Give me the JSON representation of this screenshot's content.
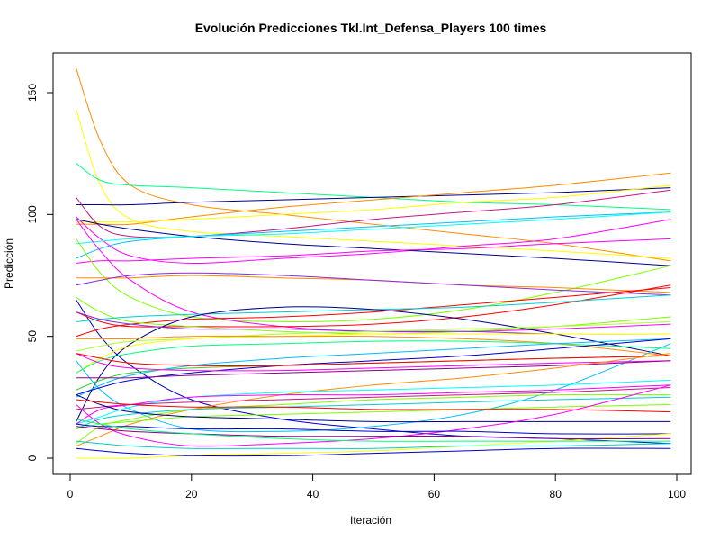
{
  "chart_data": {
    "type": "line",
    "title": "Evolución Predicciones Tkl.Int_Defensa_Players 100 times",
    "xlabel": "Iteración",
    "ylabel": "Predicción",
    "xlim": [
      1,
      99
    ],
    "ylim": [
      0,
      160
    ],
    "x_ticks": [
      0,
      20,
      40,
      60,
      80,
      100
    ],
    "y_ticks": [
      0,
      50,
      100,
      150
    ],
    "grid": false,
    "legend": "none",
    "x_sample": [
      1,
      5,
      10,
      20,
      35,
      50,
      65,
      80,
      99
    ],
    "series": [
      {
        "color": "#FF8C00",
        "values": [
          160,
          130,
          112,
          104,
          100,
          96,
          92,
          88,
          81
        ]
      },
      {
        "color": "#FFFF00",
        "values": [
          143,
          112,
          98,
          93,
          91,
          89,
          87,
          85,
          82
        ]
      },
      {
        "color": "#00FF7F",
        "values": [
          121,
          114,
          112,
          111,
          109,
          107,
          105,
          104,
          102
        ]
      },
      {
        "color": "#00008B",
        "values": [
          104,
          104,
          104,
          105,
          106,
          107,
          108,
          109,
          111
        ]
      },
      {
        "color": "#FF8C00",
        "values": [
          96,
          96,
          96,
          99,
          103,
          106,
          109,
          112,
          117
        ]
      },
      {
        "color": "#FFFF00",
        "values": [
          97,
          97,
          97,
          98,
          100,
          102,
          105,
          107,
          112
        ]
      },
      {
        "color": "#C71585",
        "values": [
          107,
          95,
          91,
          91,
          94,
          98,
          101,
          104,
          110
        ]
      },
      {
        "color": "#00BFFF",
        "values": [
          82,
          86,
          89,
          91,
          93,
          95,
          97,
          99,
          101
        ]
      },
      {
        "color": "#FF00FF",
        "values": [
          99,
          90,
          83,
          80,
          82,
          84,
          87,
          90,
          98
        ]
      },
      {
        "color": "#00008B",
        "values": [
          98,
          96,
          94,
          91,
          88,
          86,
          84,
          82,
          79
        ]
      },
      {
        "color": "#00FFFF",
        "values": [
          88,
          89,
          90,
          91,
          92,
          94,
          96,
          98,
          101
        ]
      },
      {
        "color": "#FF00FF",
        "values": [
          80,
          81,
          81,
          82,
          83,
          85,
          86,
          88,
          90
        ]
      },
      {
        "color": "#7FFF00",
        "values": [
          90,
          76,
          66,
          58,
          56,
          57,
          61,
          68,
          79
        ]
      },
      {
        "color": "#FF8C00",
        "values": [
          74,
          74,
          74,
          75,
          74,
          73,
          71,
          70,
          68
        ]
      },
      {
        "color": "#8A2BE2",
        "values": [
          71,
          73,
          75,
          76,
          75,
          73,
          71,
          69,
          67
        ]
      },
      {
        "color": "#FF00FF",
        "values": [
          98,
          85,
          73,
          60,
          54,
          52,
          52,
          53,
          55
        ]
      },
      {
        "color": "#0000CD",
        "values": [
          65,
          50,
          38,
          24,
          16,
          12,
          9,
          8,
          6
        ]
      },
      {
        "color": "#FF0000",
        "values": [
          60,
          56,
          54,
          54,
          54,
          55,
          58,
          63,
          71
        ]
      },
      {
        "color": "#FF0000",
        "values": [
          50,
          53,
          55,
          57,
          58,
          60,
          63,
          66,
          70
        ]
      },
      {
        "color": "#7FFF00",
        "values": [
          66,
          60,
          56,
          54,
          52,
          51,
          52,
          54,
          58
        ]
      },
      {
        "color": "#00CED1",
        "values": [
          56,
          57,
          58,
          59,
          60,
          61,
          62,
          64,
          67
        ]
      },
      {
        "color": "#00008B",
        "values": [
          15,
          34,
          47,
          58,
          62,
          61,
          57,
          51,
          42
        ]
      },
      {
        "color": "#00BFFF",
        "values": [
          40,
          28,
          20,
          12,
          11,
          13,
          18,
          28,
          47
        ]
      },
      {
        "color": "#8A2BE2",
        "values": [
          60,
          57,
          55,
          53,
          53,
          52,
          52,
          51,
          51
        ]
      },
      {
        "color": "#ADFF2F",
        "values": [
          44,
          46,
          48,
          49,
          51,
          52,
          53,
          54,
          56
        ]
      },
      {
        "color": "#FFFF00",
        "values": [
          35,
          41,
          46,
          49,
          50,
          51,
          51,
          51,
          51
        ]
      },
      {
        "color": "#FF8C00",
        "values": [
          49,
          49,
          49,
          50,
          50,
          50,
          49,
          47,
          42
        ]
      },
      {
        "color": "#00FF7F",
        "values": [
          35,
          40,
          43,
          46,
          47,
          48,
          48,
          47,
          45
        ]
      },
      {
        "color": "#00BFFF",
        "values": [
          25,
          30,
          34,
          38,
          41,
          43,
          45,
          47,
          49
        ]
      },
      {
        "color": "#0000CD",
        "values": [
          26,
          29,
          32,
          35,
          38,
          40,
          42,
          45,
          49
        ]
      },
      {
        "color": "#32CD32",
        "values": [
          28,
          32,
          35,
          37,
          38,
          39,
          40,
          41,
          42
        ]
      },
      {
        "color": "#FF00FF",
        "values": [
          43,
          39,
          37,
          36,
          36,
          37,
          38,
          39,
          40
        ]
      },
      {
        "color": "#FF0000",
        "values": [
          43,
          41,
          39,
          38,
          38,
          39,
          40,
          41,
          42
        ]
      },
      {
        "color": "#8B008B",
        "values": [
          33,
          33,
          33,
          34,
          35,
          36,
          37,
          38,
          40
        ]
      },
      {
        "color": "#FF8C00",
        "values": [
          5,
          9,
          14,
          20,
          26,
          30,
          33,
          37,
          43
        ]
      },
      {
        "color": "#00FFFF",
        "values": [
          14,
          17,
          21,
          25,
          27,
          28,
          29,
          30,
          32
        ]
      },
      {
        "color": "#C71585",
        "values": [
          20,
          21,
          22,
          23,
          24,
          25,
          26,
          27,
          29
        ]
      },
      {
        "color": "#FF00FF",
        "values": [
          14,
          20,
          22,
          25,
          26,
          26,
          27,
          28,
          30
        ]
      },
      {
        "color": "#7FFF00",
        "values": [
          6,
          13,
          16,
          20,
          22,
          24,
          25,
          26,
          26
        ]
      },
      {
        "color": "#00CED1",
        "values": [
          12,
          16,
          18,
          20,
          21,
          22,
          23,
          24,
          25
        ]
      },
      {
        "color": "#7CFC00",
        "values": [
          12,
          14,
          15,
          17,
          18,
          19,
          20,
          21,
          22
        ]
      },
      {
        "color": "#00008B",
        "values": [
          26,
          22,
          19,
          17,
          16,
          15,
          15,
          15,
          15
        ]
      },
      {
        "color": "#FF0000",
        "values": [
          24,
          23,
          22,
          21,
          21,
          20,
          20,
          20,
          19
        ]
      },
      {
        "color": "#FF00FF",
        "values": [
          22,
          14,
          9,
          5,
          6,
          8,
          12,
          18,
          30
        ]
      },
      {
        "color": "#0000CD",
        "values": [
          14,
          13,
          13,
          12,
          12,
          11,
          11,
          10,
          10
        ]
      },
      {
        "color": "#FFFF00",
        "values": [
          0,
          0,
          0,
          1,
          2,
          3,
          5,
          7,
          10
        ]
      },
      {
        "color": "#00CED1",
        "values": [
          7,
          6,
          5,
          4,
          4,
          4,
          5,
          5,
          6
        ]
      },
      {
        "color": "#0000CD",
        "values": [
          4,
          3,
          2,
          1,
          1,
          2,
          3,
          4,
          4
        ]
      },
      {
        "color": "#8B008B",
        "values": [
          13,
          12,
          11,
          10,
          9,
          9,
          9,
          8,
          8
        ]
      },
      {
        "color": "#00FF7F",
        "values": [
          16,
          14,
          12,
          10,
          8,
          7,
          7,
          7,
          7
        ]
      }
    ]
  }
}
